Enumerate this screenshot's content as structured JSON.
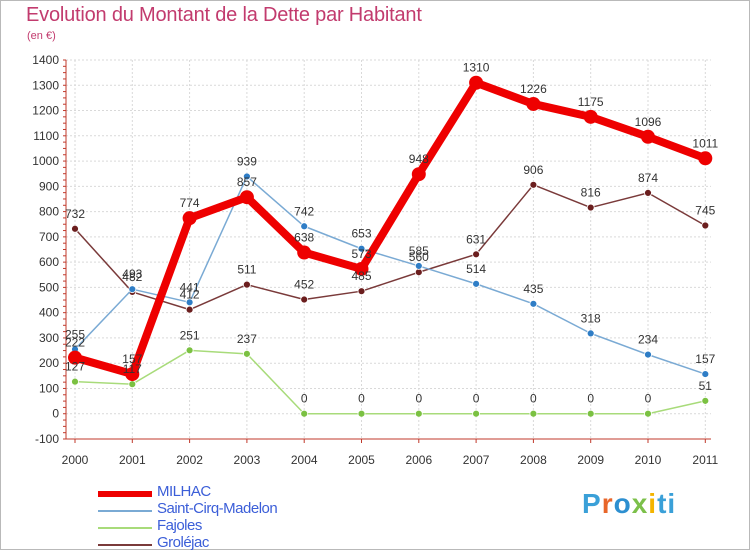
{
  "title": "Evolution du Montant de la Dette par Habitant",
  "subtitle": "(en €)",
  "logo": "Proxiti",
  "chart_data": {
    "type": "line",
    "x": [
      "2000",
      "2001",
      "2002",
      "2003",
      "2004",
      "2005",
      "2006",
      "2007",
      "2008",
      "2009",
      "2010",
      "2011"
    ],
    "ylim": [
      -100,
      1400
    ],
    "yticks": [
      -100,
      0,
      100,
      200,
      300,
      400,
      500,
      600,
      700,
      800,
      900,
      1000,
      1100,
      1200,
      1300,
      1400
    ],
    "grid": true,
    "legend_position": "bottom-left",
    "series": [
      {
        "name": "MILHAC",
        "values": [
          222,
          157,
          774,
          857,
          638,
          573,
          948,
          1310,
          1226,
          1175,
          1096,
          1011
        ],
        "color": "#ee0000",
        "marker": "#ee0000"
      },
      {
        "name": "Saint-Cirq-Madelon",
        "values": [
          255,
          493,
          441,
          939,
          742,
          653,
          585,
          514,
          435,
          318,
          234,
          157
        ],
        "color": "#7aaad4",
        "marker": "#2e7dc6"
      },
      {
        "name": "Fajoles",
        "values": [
          127,
          117,
          251,
          237,
          0,
          0,
          0,
          0,
          0,
          0,
          0,
          51
        ],
        "color": "#a8db7a",
        "marker": "#7bc142"
      },
      {
        "name": "Groléjac",
        "values": [
          732,
          482,
          412,
          511,
          452,
          485,
          560,
          631,
          906,
          816,
          874,
          745
        ],
        "color": "#7a3a3a",
        "marker": "#6b1e1e"
      }
    ]
  }
}
